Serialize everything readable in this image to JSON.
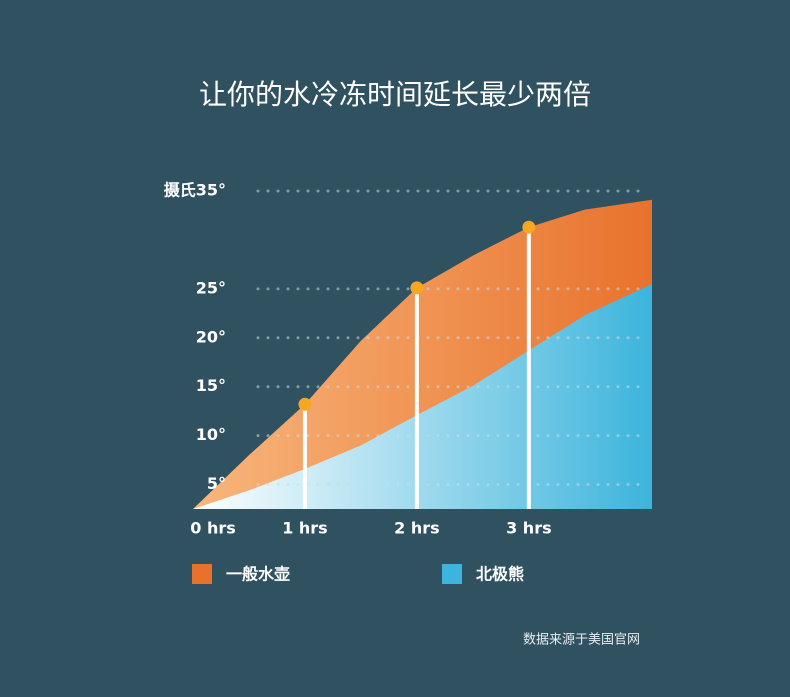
{
  "chart_data": {
    "type": "area",
    "title": "让你的水冷冻时间延长最少两倍",
    "x": [
      0,
      0.5,
      1,
      1.5,
      2,
      2.5,
      3,
      3.5,
      4.1
    ],
    "series": [
      {
        "name": "一般水壶",
        "color": "#e8722c",
        "values": [
          2.5,
          8.0,
          13.2,
          19.7,
          25.1,
          28.4,
          31.3,
          33.1,
          34.1
        ]
      },
      {
        "name": "北极熊",
        "color": "#3cb4dc",
        "values": [
          2.5,
          4.4,
          6.6,
          9.0,
          12.1,
          15.1,
          18.7,
          22.3,
          25.5
        ]
      }
    ],
    "xlim": [
      0,
      4.1
    ],
    "xticks": [
      {
        "value": 0,
        "label": "0 hrs"
      },
      {
        "value": 1,
        "label": "1 hrs"
      },
      {
        "value": 2,
        "label": "2 hrs"
      },
      {
        "value": 3,
        "label": "3 hrs"
      }
    ],
    "ylim": [
      2.5,
      35
    ],
    "yticks": [
      {
        "value": 5,
        "label": "5°"
      },
      {
        "value": 10,
        "label": "10°"
      },
      {
        "value": 15,
        "label": "15°"
      },
      {
        "value": 20,
        "label": "20°"
      },
      {
        "value": 25,
        "label": "25°"
      },
      {
        "value": 35,
        "label": "摄氏35°"
      }
    ],
    "grid": true,
    "source": "数据来源于美国官网"
  }
}
